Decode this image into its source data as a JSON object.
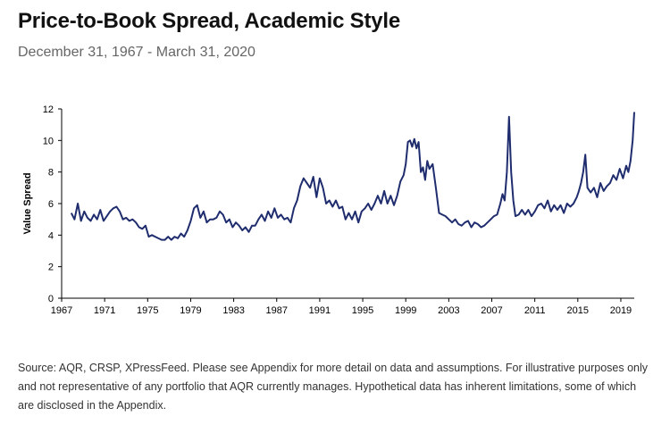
{
  "header": {
    "title": "Price-to-Book Spread, Academic Style",
    "subtitle": "December 31, 1967 - March 31, 2020"
  },
  "footer": {
    "source": "Source: AQR, CRSP, XPressFeed. Please see Appendix for more detail on data and assumptions. For illustrative purposes only and not representative of any portfolio that AQR currently manages. Hypothetical data has inherent limitations, some of which are disclosed in the Appendix."
  },
  "colors": {
    "line": "#1f2d6e",
    "axis": "#000000"
  },
  "chart_data": {
    "type": "line",
    "title": "Price-to-Book Spread, Academic Style",
    "subtitle": "December 31, 1967 - March 31, 2020",
    "xlabel": "",
    "ylabel": "Value Spread",
    "xlim": [
      1967,
      2020.25
    ],
    "ylim": [
      0,
      12
    ],
    "yticks": [
      0,
      2,
      4,
      6,
      8,
      10,
      12
    ],
    "xticks": [
      1967,
      1971,
      1975,
      1979,
      1983,
      1987,
      1991,
      1995,
      1999,
      2003,
      2007,
      2011,
      2015,
      2019
    ],
    "grid": false,
    "series": [
      {
        "name": "Value Spread",
        "x": [
          1967.9,
          1968.2,
          1968.5,
          1968.8,
          1969.1,
          1969.4,
          1969.7,
          1970.0,
          1970.3,
          1970.6,
          1970.9,
          1971.2,
          1971.5,
          1971.8,
          1972.1,
          1972.4,
          1972.7,
          1973.0,
          1973.3,
          1973.6,
          1973.9,
          1974.2,
          1974.5,
          1974.8,
          1975.1,
          1975.4,
          1975.7,
          1976.0,
          1976.3,
          1976.6,
          1976.9,
          1977.2,
          1977.5,
          1977.8,
          1978.1,
          1978.4,
          1978.7,
          1979.0,
          1979.3,
          1979.6,
          1979.9,
          1980.2,
          1980.5,
          1980.8,
          1981.1,
          1981.4,
          1981.7,
          1982.0,
          1982.3,
          1982.6,
          1982.9,
          1983.2,
          1983.5,
          1983.8,
          1984.1,
          1984.4,
          1984.7,
          1985.0,
          1985.3,
          1985.6,
          1985.9,
          1986.2,
          1986.5,
          1986.8,
          1987.1,
          1987.4,
          1987.7,
          1988.0,
          1988.3,
          1988.6,
          1988.9,
          1989.2,
          1989.5,
          1989.8,
          1990.1,
          1990.4,
          1990.7,
          1991.0,
          1991.3,
          1991.6,
          1991.9,
          1992.2,
          1992.5,
          1992.8,
          1993.1,
          1993.4,
          1993.7,
          1994.0,
          1994.3,
          1994.6,
          1994.9,
          1995.2,
          1995.5,
          1995.8,
          1996.1,
          1996.4,
          1996.7,
          1997.0,
          1997.3,
          1997.6,
          1997.9,
          1998.2,
          1998.5,
          1998.8,
          1999.0,
          1999.2,
          1999.4,
          1999.6,
          1999.8,
          2000.0,
          2000.2,
          2000.4,
          2000.6,
          2000.8,
          2001.0,
          2001.2,
          2001.5,
          2001.8,
          2002.1,
          2002.4,
          2002.7,
          2003.0,
          2003.3,
          2003.6,
          2003.9,
          2004.2,
          2004.5,
          2004.8,
          2005.1,
          2005.4,
          2005.7,
          2006.0,
          2006.3,
          2006.6,
          2006.9,
          2007.2,
          2007.5,
          2007.8,
          2008.0,
          2008.2,
          2008.4,
          2008.6,
          2008.8,
          2009.0,
          2009.2,
          2009.5,
          2009.8,
          2010.1,
          2010.4,
          2010.7,
          2011.0,
          2011.3,
          2011.6,
          2011.9,
          2012.2,
          2012.5,
          2012.8,
          2013.1,
          2013.4,
          2013.7,
          2014.0,
          2014.3,
          2014.6,
          2014.9,
          2015.1,
          2015.3,
          2015.5,
          2015.7,
          2015.9,
          2016.2,
          2016.5,
          2016.8,
          2017.1,
          2017.4,
          2017.7,
          2018.0,
          2018.3,
          2018.6,
          2018.9,
          2019.2,
          2019.5,
          2019.7,
          2019.9,
          2020.1,
          2020.25
        ],
        "values": [
          5.4,
          5.0,
          6.0,
          4.9,
          5.5,
          5.1,
          4.9,
          5.3,
          5.0,
          5.6,
          4.9,
          5.2,
          5.5,
          5.7,
          5.8,
          5.5,
          5.0,
          5.1,
          4.9,
          5.0,
          4.8,
          4.5,
          4.4,
          4.6,
          3.9,
          4.0,
          3.9,
          3.8,
          3.7,
          3.7,
          3.9,
          3.7,
          3.9,
          3.8,
          4.1,
          3.9,
          4.3,
          4.9,
          5.7,
          5.9,
          5.1,
          5.5,
          4.8,
          5.0,
          5.0,
          5.1,
          5.5,
          5.3,
          4.8,
          5.0,
          4.5,
          4.8,
          4.6,
          4.3,
          4.5,
          4.2,
          4.6,
          4.6,
          5.0,
          5.3,
          4.9,
          5.5,
          5.1,
          5.7,
          5.1,
          5.3,
          5.0,
          5.1,
          4.8,
          5.7,
          6.2,
          7.1,
          7.6,
          7.3,
          7.0,
          7.7,
          6.4,
          7.6,
          7.0,
          6.0,
          6.2,
          5.8,
          6.2,
          5.7,
          5.8,
          5.0,
          5.4,
          5.0,
          5.5,
          4.8,
          5.5,
          5.7,
          6.0,
          5.6,
          6.0,
          6.5,
          6.0,
          6.8,
          6.0,
          6.5,
          5.9,
          6.5,
          7.4,
          7.8,
          8.5,
          9.9,
          10.0,
          9.6,
          10.1,
          9.5,
          9.9,
          8.0,
          8.3,
          7.5,
          8.7,
          8.2,
          8.5,
          7.0,
          5.4,
          5.3,
          5.2,
          5.0,
          4.8,
          5.0,
          4.7,
          4.6,
          4.8,
          4.9,
          4.5,
          4.8,
          4.7,
          4.5,
          4.6,
          4.8,
          5.0,
          5.2,
          5.3,
          6.0,
          6.6,
          6.2,
          8.0,
          11.5,
          8.0,
          6.2,
          5.2,
          5.3,
          5.6,
          5.3,
          5.6,
          5.2,
          5.5,
          5.9,
          6.0,
          5.7,
          6.2,
          5.5,
          5.9,
          5.6,
          5.9,
          5.4,
          6.0,
          5.8,
          6.0,
          6.4,
          6.8,
          7.3,
          8.0,
          9.1,
          7.0,
          6.7,
          7.0,
          6.4,
          7.3,
          6.8,
          7.1,
          7.3,
          7.8,
          7.5,
          8.2,
          7.6,
          8.4,
          8.0,
          8.7,
          10.0,
          11.8
        ]
      }
    ]
  }
}
